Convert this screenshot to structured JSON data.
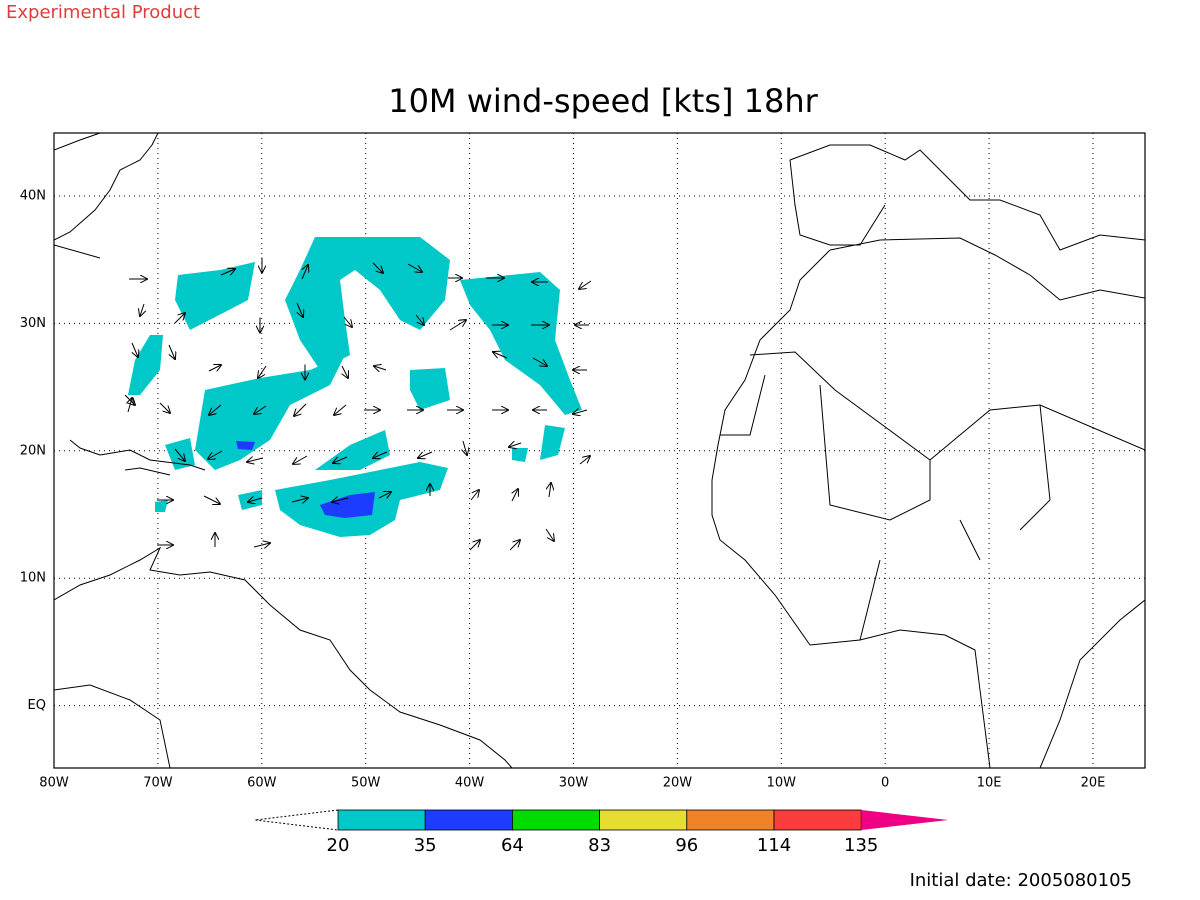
{
  "header": {
    "note": "Experimental Product"
  },
  "map": {
    "title": "10M wind-speed [kts] 18hr",
    "lon_labels": [
      "80W",
      "70W",
      "60W",
      "50W",
      "40W",
      "30W",
      "20W",
      "10W",
      "0",
      "10E",
      "20E"
    ],
    "lat_labels": [
      "40N",
      "30N",
      "20N",
      "10N",
      "EQ"
    ]
  },
  "colorbar": {
    "levels": [
      20,
      35,
      64,
      83,
      96,
      114,
      135
    ],
    "colors": [
      "#00c8c8",
      "#1e3cff",
      "#00dc00",
      "#e6dc32",
      "#f08228",
      "#fa3c3c",
      "#f00082"
    ]
  },
  "footer": {
    "initial_date": "Initial date: 2005080105"
  }
}
